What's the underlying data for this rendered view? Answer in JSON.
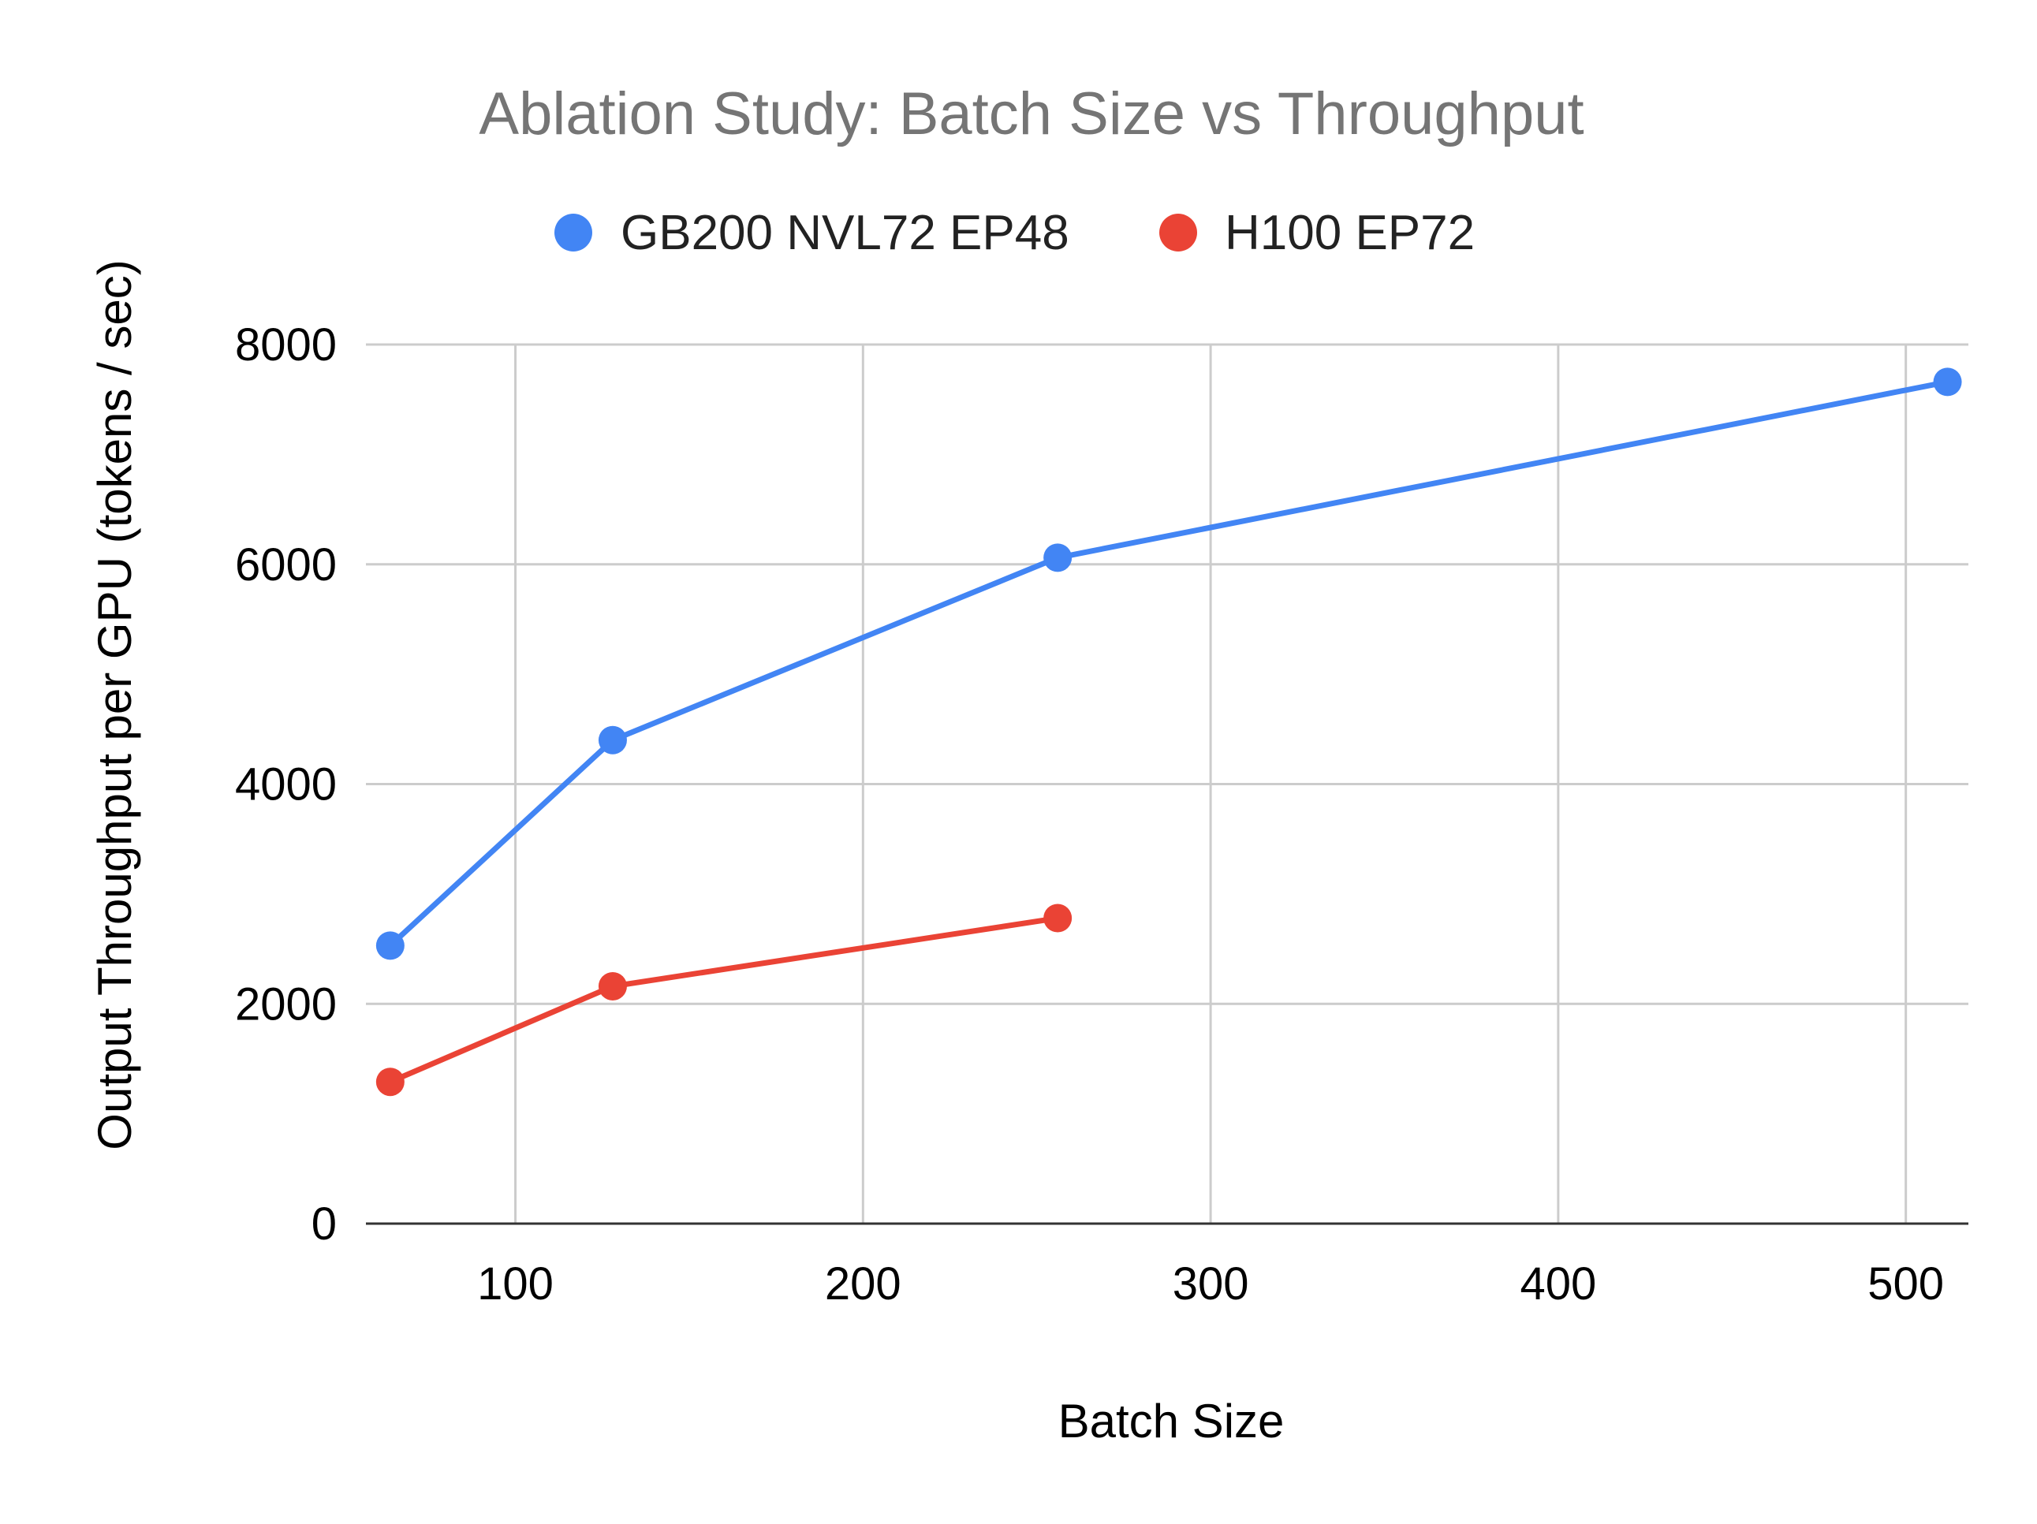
{
  "chart_data": {
    "type": "line",
    "title": "Ablation Study: Batch Size vs Throughput",
    "xlabel": "Batch Size",
    "ylabel": "Output Throughput per GPU (tokens / sec)",
    "xlim": [
      57,
      518
    ],
    "ylim": [
      0,
      8000
    ],
    "xticks": [
      100,
      200,
      300,
      400,
      500
    ],
    "yticks": [
      0,
      2000,
      4000,
      6000,
      8000
    ],
    "grid": true,
    "legend_position": "top-center",
    "series": [
      {
        "name": "GB200 NVL72 EP48",
        "color": "#4285F4",
        "x": [
          64,
          128,
          256,
          512
        ],
        "y": [
          2530,
          4400,
          6060,
          7660
        ]
      },
      {
        "name": "H100 EP72",
        "color": "#EA4335",
        "x": [
          64,
          128,
          256
        ],
        "y": [
          1290,
          2160,
          2780
        ]
      }
    ]
  }
}
